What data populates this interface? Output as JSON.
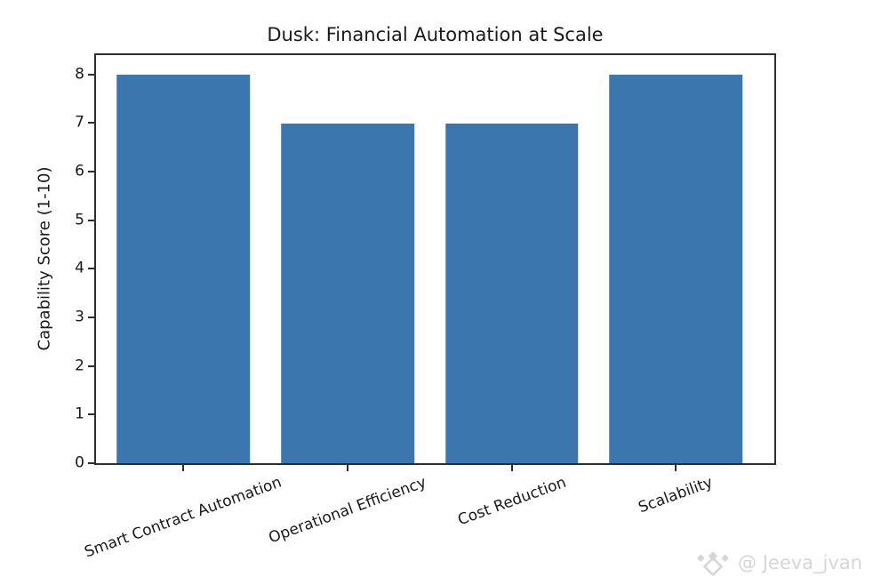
{
  "page": {
    "background": "#ffffff"
  },
  "chart_data": {
    "type": "bar",
    "title": "Dusk: Financial Automation at Scale",
    "categories": [
      "Smart Contract Automation",
      "Operational Efficiency",
      "Cost Reduction",
      "Scalability"
    ],
    "values": [
      8,
      7,
      7,
      8
    ],
    "xlabel": "",
    "ylabel": "Capability Score (1-10)",
    "ylim": [
      0,
      8.4
    ],
    "yticks": [
      0,
      1,
      2,
      3,
      4,
      5,
      6,
      7,
      8
    ],
    "x_tick_rotation_deg": 20,
    "grid": false,
    "legend_position": "none",
    "bar_color": "#3b76af",
    "axis_color": "#2e2e2e",
    "text_color": "#1a1a1a"
  },
  "watermark": {
    "handle": "@ Jeeva_jvan",
    "icon": "binance-diamond-logo",
    "color": "#d6d6d6"
  }
}
